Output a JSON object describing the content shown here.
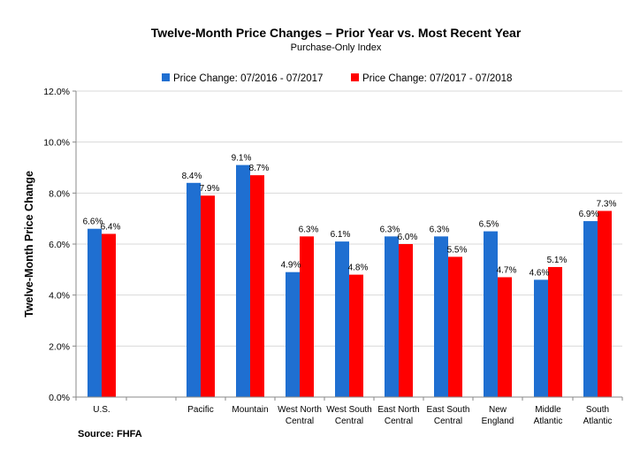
{
  "chart_data": {
    "type": "bar",
    "title": "Twelve-Month Price Changes – Prior Year vs. Most Recent Year",
    "subtitle": "Purchase-Only Index",
    "ylabel": "Twelve-Month Price Change",
    "xlabel": "",
    "source": "Source: FHFA",
    "ylim": [
      0,
      12
    ],
    "yticks": [
      "0.0%",
      "2.0%",
      "4.0%",
      "6.0%",
      "8.0%",
      "10.0%",
      "12.0%"
    ],
    "legend_position": "top-center",
    "categories": [
      [
        "U.S."
      ],
      [
        "Pacific"
      ],
      [
        "Mountain"
      ],
      [
        "West North",
        "Central"
      ],
      [
        "West South",
        "Central"
      ],
      [
        "East North",
        "Central"
      ],
      [
        "East South",
        "Central"
      ],
      [
        "New",
        "England"
      ],
      [
        "Middle",
        "Atlantic"
      ],
      [
        "South",
        "Atlantic"
      ]
    ],
    "series": [
      {
        "name": "Price Change:  07/2016 - 07/2017",
        "color": "#1f6fd1",
        "values": [
          6.6,
          8.4,
          9.1,
          4.9,
          6.1,
          6.3,
          6.3,
          6.5,
          4.6,
          6.9
        ],
        "labels": [
          "6.6%",
          "8.4%",
          "9.1%",
          "4.9%",
          "6.1%",
          "6.3%",
          "6.3%",
          "6.5%",
          "4.6%",
          "6.9%"
        ]
      },
      {
        "name": "Price Change:  07/2017 - 07/2018",
        "color": "#ff0000",
        "values": [
          6.4,
          7.9,
          8.7,
          6.3,
          4.8,
          6.0,
          5.5,
          4.7,
          5.1,
          7.3
        ],
        "labels": [
          "6.4%",
          "7.9%",
          "8.7%",
          "6.3%",
          "4.8%",
          "6.0%",
          "5.5%",
          "4.7%",
          "5.1%",
          "7.3%"
        ]
      }
    ]
  }
}
